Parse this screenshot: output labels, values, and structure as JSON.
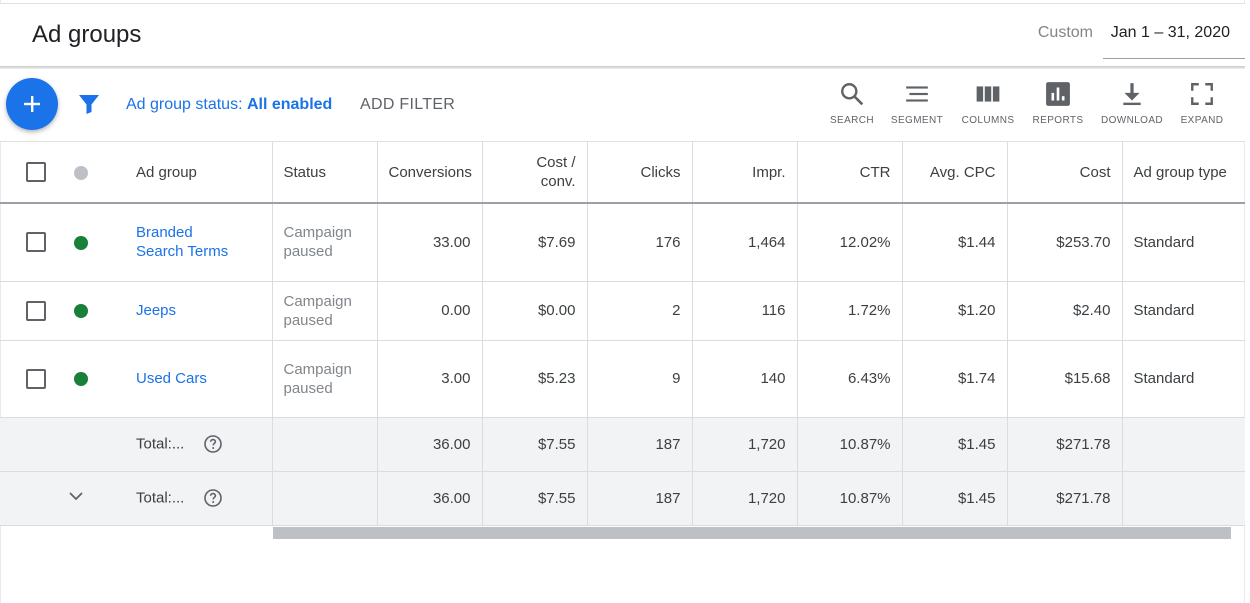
{
  "header": {
    "title": "Ad groups",
    "date_label": "Custom",
    "date_range": "Jan 1 – 31, 2020"
  },
  "toolbar": {
    "status_filter_label": "Ad group status:",
    "status_filter_value": "All enabled",
    "add_filter": "ADD FILTER",
    "tools": {
      "search": "SEARCH",
      "segment": "SEGMENT",
      "columns": "COLUMNS",
      "reports": "REPORTS",
      "download": "DOWNLOAD",
      "expand": "EXPAND"
    }
  },
  "colors": {
    "accent": "#1a73e8",
    "status_enabled": "#188038",
    "status_header": "#bdc1c6"
  },
  "table": {
    "columns": {
      "ad_group": "Ad group",
      "status": "Status",
      "conversions": "Conversions",
      "cost_conv_1": "Cost /",
      "cost_conv_2": "conv.",
      "clicks": "Clicks",
      "impr": "Impr.",
      "ctr": "CTR",
      "avg_cpc": "Avg. CPC",
      "cost": "Cost",
      "ad_group_type": "Ad group type"
    },
    "rows": [
      {
        "ad_group_1": "Branded",
        "ad_group_2": "Search Terms",
        "status_1": "Campaign",
        "status_2": "paused",
        "conversions": "33.00",
        "cost_conv": "$7.69",
        "clicks": "176",
        "impr": "1,464",
        "ctr": "12.02%",
        "avg_cpc": "$1.44",
        "cost": "$253.70",
        "ad_group_type": "Standard"
      },
      {
        "ad_group_1": "Jeeps",
        "status_1": "Campaign",
        "status_2": "paused",
        "conversions": "0.00",
        "cost_conv": "$0.00",
        "clicks": "2",
        "impr": "116",
        "ctr": "1.72%",
        "avg_cpc": "$1.20",
        "cost": "$2.40",
        "ad_group_type": "Standard"
      },
      {
        "ad_group_1": "Used Cars",
        "status_1": "Campaign",
        "status_2": "paused",
        "conversions": "3.00",
        "cost_conv": "$5.23",
        "clicks": "9",
        "impr": "140",
        "ctr": "6.43%",
        "avg_cpc": "$1.74",
        "cost": "$15.68",
        "ad_group_type": "Standard"
      }
    ],
    "totals": [
      {
        "label": "Total:...",
        "conversions": "36.00",
        "cost_conv": "$7.55",
        "clicks": "187",
        "impr": "1,720",
        "ctr": "10.87%",
        "avg_cpc": "$1.45",
        "cost": "$271.78"
      },
      {
        "label": "Total:...",
        "conversions": "36.00",
        "cost_conv": "$7.55",
        "clicks": "187",
        "impr": "1,720",
        "ctr": "10.87%",
        "avg_cpc": "$1.45",
        "cost": "$271.78"
      }
    ]
  }
}
